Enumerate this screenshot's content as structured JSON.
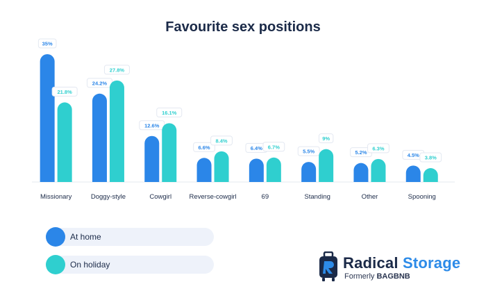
{
  "chart_data": {
    "type": "bar",
    "title": "Favourite sex positions",
    "categories": [
      "Missionary",
      "Doggy-style",
      "Cowgirl",
      "Reverse-cowgirl",
      "69",
      "Standing",
      "Other",
      "Spooning"
    ],
    "series": [
      {
        "name": "At home",
        "values": [
          35,
          24.2,
          12.6,
          6.6,
          6.4,
          5.5,
          5.2,
          4.5
        ],
        "labels": [
          "35%",
          "24.2%",
          "12.6%",
          "6.6%",
          "6.4%",
          "5.5%",
          "5.2%",
          "4.5%"
        ],
        "color": "#2b86e8"
      },
      {
        "name": "On holiday",
        "values": [
          21.8,
          27.8,
          16.1,
          8.4,
          6.7,
          9,
          6.3,
          3.8
        ],
        "labels": [
          "21.8%",
          "27.8%",
          "16.1%",
          "8.4%",
          "6.7%",
          "9%",
          "6.3%",
          "3.8%"
        ],
        "color": "#2fcfcf"
      }
    ],
    "ylim": [
      0,
      35
    ],
    "grid": false,
    "legend_position": "bottom-left"
  },
  "brand": {
    "name_part1": "Radical",
    "name_part2": "Storage",
    "tagline_prefix": "Formerly",
    "tagline_name": "BAGBNB",
    "icon": "luggage-icon",
    "colors": {
      "dark": "#1b2a48",
      "accent": "#2d8be8"
    }
  }
}
